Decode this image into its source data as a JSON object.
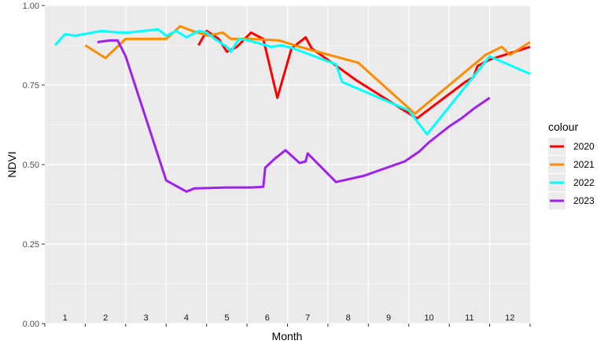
{
  "chart_data": {
    "type": "line",
    "title": "",
    "xlabel": "Month",
    "ylabel": "NDVI",
    "xlim": [
      0.5,
      12.5
    ],
    "ylim": [
      0,
      1
    ],
    "yticks": [
      {
        "value": 0,
        "label": "0.00"
      },
      {
        "value": 0.25,
        "label": "0.25"
      },
      {
        "value": 0.5,
        "label": "0.50"
      },
      {
        "value": 0.75,
        "label": "0.75"
      },
      {
        "value": 1,
        "label": "1.00"
      }
    ],
    "month_labels": [
      "1",
      "2",
      "3",
      "4",
      "5",
      "6",
      "7",
      "8",
      "9",
      "10",
      "11",
      "12"
    ],
    "grid": true,
    "legend": {
      "title": "colour",
      "position": "right"
    },
    "series": [
      {
        "name": "2020",
        "color": "#ff0000",
        "points": [
          [
            4.3,
            0.875
          ],
          [
            4.5,
            0.92
          ],
          [
            4.8,
            0.895
          ],
          [
            5.0,
            0.855
          ],
          [
            5.25,
            0.87
          ],
          [
            5.6,
            0.915
          ],
          [
            5.9,
            0.895
          ],
          [
            6.25,
            0.71
          ],
          [
            6.6,
            0.865
          ],
          [
            6.95,
            0.9
          ],
          [
            7.1,
            0.865
          ],
          [
            7.6,
            0.82
          ],
          [
            8.2,
            0.765
          ],
          [
            9.7,
            0.645
          ],
          [
            10.9,
            0.76
          ],
          [
            11.1,
            0.775
          ],
          [
            11.2,
            0.81
          ],
          [
            11.5,
            0.83
          ],
          [
            12.0,
            0.85
          ],
          [
            12.5,
            0.87
          ]
        ]
      },
      {
        "name": "2021",
        "color": "#ff8c00",
        "points": [
          [
            1.5,
            0.875
          ],
          [
            2.0,
            0.835
          ],
          [
            2.5,
            0.895
          ],
          [
            2.9,
            0.895
          ],
          [
            3.5,
            0.895
          ],
          [
            3.85,
            0.935
          ],
          [
            4.15,
            0.92
          ],
          [
            4.55,
            0.905
          ],
          [
            4.9,
            0.915
          ],
          [
            5.1,
            0.895
          ],
          [
            5.6,
            0.895
          ],
          [
            6.3,
            0.89
          ],
          [
            6.8,
            0.87
          ],
          [
            8.25,
            0.82
          ],
          [
            9.65,
            0.66
          ],
          [
            11.4,
            0.845
          ],
          [
            11.8,
            0.87
          ],
          [
            12.0,
            0.845
          ],
          [
            12.5,
            0.885
          ]
        ]
      },
      {
        "name": "2022",
        "color": "#00ffff",
        "points": [
          [
            0.75,
            0.875
          ],
          [
            1.0,
            0.91
          ],
          [
            1.25,
            0.905
          ],
          [
            1.9,
            0.92
          ],
          [
            2.3,
            0.915
          ],
          [
            2.6,
            0.915
          ],
          [
            3.3,
            0.925
          ],
          [
            3.5,
            0.905
          ],
          [
            3.75,
            0.92
          ],
          [
            4.0,
            0.9
          ],
          [
            4.3,
            0.92
          ],
          [
            4.5,
            0.915
          ],
          [
            4.7,
            0.895
          ],
          [
            5.0,
            0.87
          ],
          [
            5.1,
            0.855
          ],
          [
            5.3,
            0.895
          ],
          [
            5.55,
            0.89
          ],
          [
            6.1,
            0.87
          ],
          [
            6.35,
            0.875
          ],
          [
            6.65,
            0.865
          ],
          [
            7.7,
            0.815
          ],
          [
            7.85,
            0.76
          ],
          [
            9.5,
            0.67
          ],
          [
            9.95,
            0.595
          ],
          [
            11.5,
            0.84
          ],
          [
            12.5,
            0.785
          ]
        ]
      },
      {
        "name": "2023",
        "color": "#a020f0",
        "points": [
          [
            1.8,
            0.885
          ],
          [
            2.1,
            0.89
          ],
          [
            2.3,
            0.89
          ],
          [
            2.5,
            0.84
          ],
          [
            3.5,
            0.45
          ],
          [
            4.0,
            0.415
          ],
          [
            4.2,
            0.425
          ],
          [
            5.0,
            0.428
          ],
          [
            5.6,
            0.428
          ],
          [
            5.9,
            0.43
          ],
          [
            5.95,
            0.49
          ],
          [
            6.2,
            0.52
          ],
          [
            6.45,
            0.545
          ],
          [
            6.8,
            0.505
          ],
          [
            6.95,
            0.51
          ],
          [
            7.0,
            0.535
          ],
          [
            7.7,
            0.445
          ],
          [
            8.4,
            0.465
          ],
          [
            9.4,
            0.51
          ],
          [
            9.75,
            0.54
          ],
          [
            10.0,
            0.57
          ],
          [
            10.5,
            0.62
          ],
          [
            10.8,
            0.645
          ],
          [
            11.1,
            0.675
          ],
          [
            11.5,
            0.71
          ]
        ]
      }
    ]
  }
}
